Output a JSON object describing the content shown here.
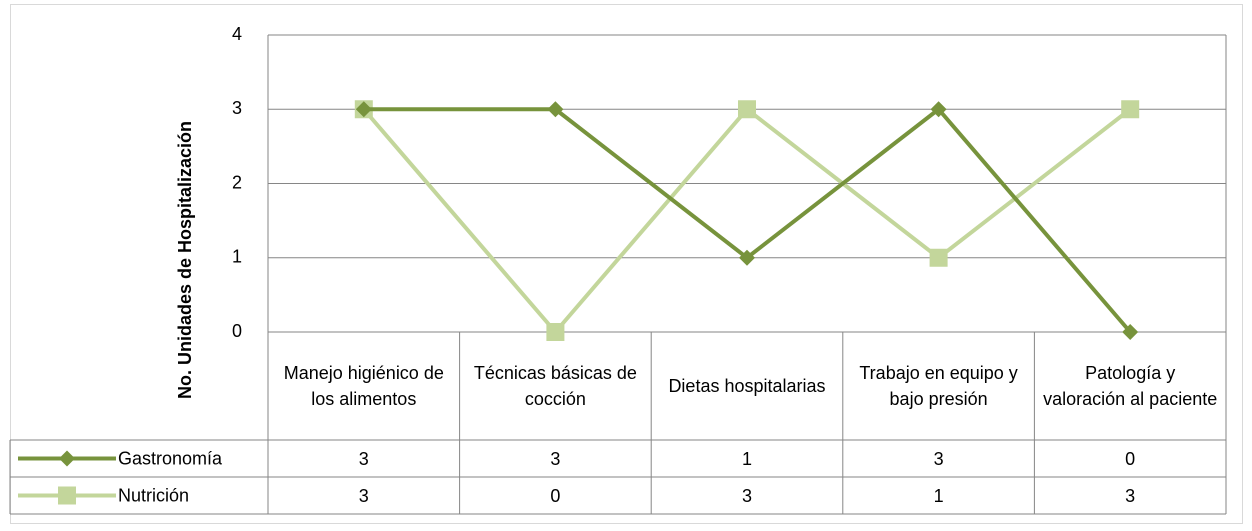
{
  "chart_data": {
    "type": "line",
    "y_label": "No. Unidades de Hospitalización",
    "categories": [
      "Manejo higiénico de los alimentos",
      "Técnicas básicas de cocción",
      "Dietas hospitalarias",
      "Trabajo en equipo y bajo presión",
      "Patología y valoración al paciente"
    ],
    "series": [
      {
        "name": "Gastronomía",
        "color": "#77933c",
        "marker": "diamond",
        "values": [
          3,
          3,
          1,
          3,
          0
        ]
      },
      {
        "name": "Nutrición",
        "color": "#c3d69b",
        "marker": "square",
        "values": [
          3,
          0,
          3,
          1,
          3
        ]
      }
    ],
    "ylim": [
      0,
      4
    ],
    "yticks": [
      0,
      1,
      2,
      3,
      4
    ],
    "grid": true,
    "data_table": true
  }
}
